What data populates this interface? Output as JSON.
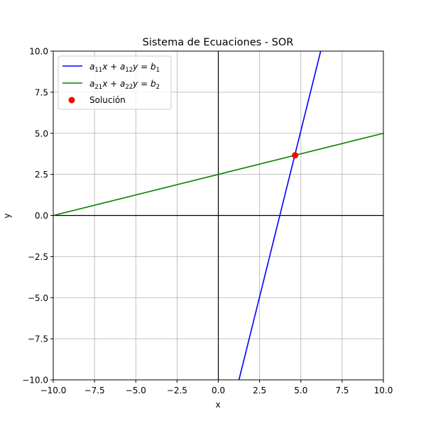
{
  "chart_data": {
    "type": "line",
    "title": "Sistema de Ecuaciones - SOR",
    "xlabel": "x",
    "ylabel": "y",
    "xlim": [
      -10,
      10
    ],
    "ylim": [
      -10,
      10
    ],
    "xticks": [
      -10,
      -7.5,
      -5,
      -2.5,
      0,
      2.5,
      5,
      7.5,
      10
    ],
    "yticks": [
      -10,
      -7.5,
      -5,
      -2.5,
      0,
      2.5,
      5,
      7.5,
      10
    ],
    "xtick_labels": [
      "−10.0",
      "−7.5",
      "−5.0",
      "−2.5",
      "0.0",
      "2.5",
      "5.0",
      "7.5",
      "10.0"
    ],
    "ytick_labels": [
      "−10.0",
      "−7.5",
      "−5.0",
      "−2.5",
      "0.0",
      "2.5",
      "5.0",
      "7.5",
      "10.0"
    ],
    "grid": true,
    "legend_position": "top-left",
    "series": [
      {
        "name": "a11x + a12y = b1",
        "kind": "line",
        "color": "#0000ff",
        "x": [
          1.25,
          6.2
        ],
        "y": [
          -10,
          10
        ]
      },
      {
        "name": "a21x + a22y = b2",
        "kind": "line",
        "color": "#008000",
        "x": [
          -10,
          10
        ],
        "y": [
          0,
          5
        ]
      },
      {
        "name": "Solución",
        "kind": "scatter",
        "color": "#ff0000",
        "x": [
          4.65
        ],
        "y": [
          3.66
        ]
      }
    ]
  }
}
